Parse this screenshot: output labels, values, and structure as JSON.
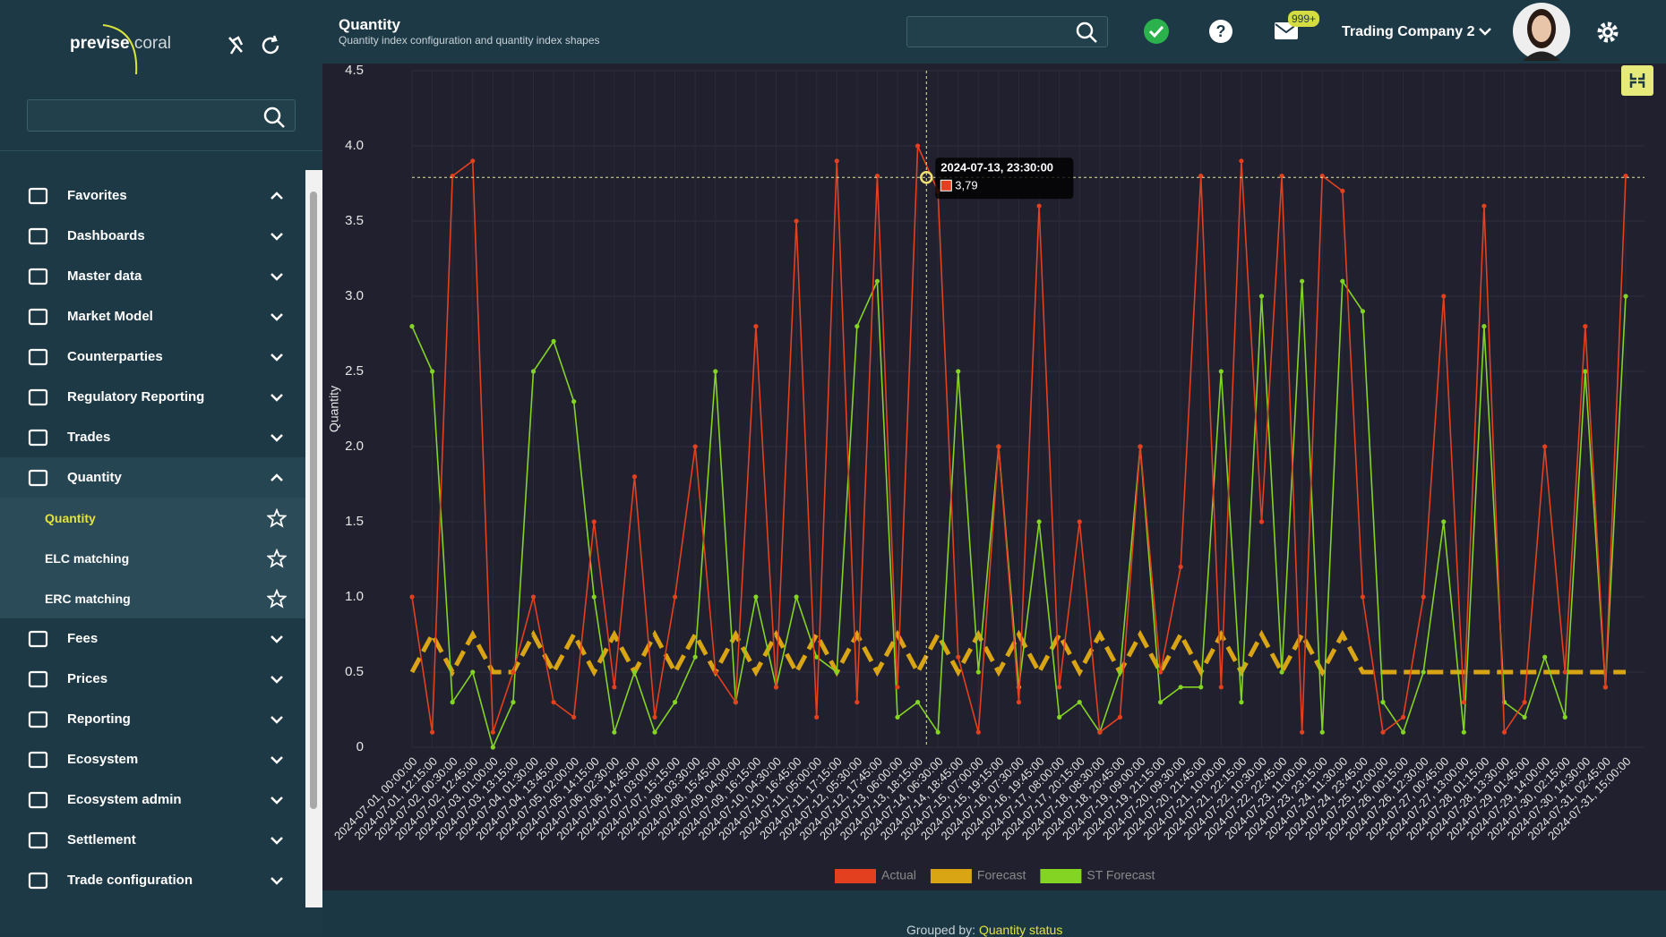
{
  "header": {
    "title": "Quantity",
    "subtitle": "Quantity index configuration and quantity index shapes",
    "notification_badge": "999+",
    "company": "Trading Company 2"
  },
  "logo": {
    "brand": "previse",
    "product": "coral"
  },
  "sidebar": {
    "menu": [
      {
        "label": "Favorites"
      },
      {
        "label": "Dashboards"
      },
      {
        "label": "Master data"
      },
      {
        "label": "Market Model"
      },
      {
        "label": "Counterparties"
      },
      {
        "label": "Regulatory Reporting"
      },
      {
        "label": "Trades"
      },
      {
        "label": "Quantity",
        "children": [
          {
            "label": "Quantity"
          },
          {
            "label": "ELC matching"
          },
          {
            "label": "ERC matching"
          }
        ]
      },
      {
        "label": "Fees"
      },
      {
        "label": "Prices"
      },
      {
        "label": "Reporting"
      },
      {
        "label": "Ecosystem"
      },
      {
        "label": "Ecosystem admin"
      },
      {
        "label": "Settlement"
      },
      {
        "label": "Trade configuration"
      }
    ]
  },
  "footer": {
    "label": "Grouped by:",
    "value": "Quantity status"
  },
  "chart_data": {
    "type": "line",
    "y_label": "Quantity",
    "categories": [
      "2024-07-01, 00:00:00",
      "2024-07-01, 12:15:00",
      "2024-07-02, 00:30:00",
      "2024-07-02, 12:45:00",
      "2024-07-03, 01:00:00",
      "2024-07-03, 13:15:00",
      "2024-07-04, 01:30:00",
      "2024-07-04, 13:45:00",
      "2024-07-05, 02:00:00",
      "2024-07-05, 14:15:00",
      "2024-07-06, 02:30:00",
      "2024-07-06, 14:45:00",
      "2024-07-07, 03:00:00",
      "2024-07-07, 15:15:00",
      "2024-07-08, 03:30:00",
      "2024-07-08, 15:45:00",
      "2024-07-09, 04:00:00",
      "2024-07-09, 16:15:00",
      "2024-07-10, 04:30:00",
      "2024-07-10, 16:45:00",
      "2024-07-11, 05:00:00",
      "2024-07-11, 17:15:00",
      "2024-07-12, 05:30:00",
      "2024-07-12, 17:45:00",
      "2024-07-13, 06:00:00",
      "2024-07-13, 18:15:00",
      "2024-07-14, 06:30:00",
      "2024-07-14, 18:45:00",
      "2024-07-15, 07:00:00",
      "2024-07-15, 19:15:00",
      "2024-07-16, 07:30:00",
      "2024-07-16, 19:45:00",
      "2024-07-17, 08:00:00",
      "2024-07-17, 20:15:00",
      "2024-07-18, 08:30:00",
      "2024-07-18, 20:45:00",
      "2024-07-19, 09:00:00",
      "2024-07-19, 21:15:00",
      "2024-07-20, 09:30:00",
      "2024-07-20, 21:45:00",
      "2024-07-21, 10:00:00",
      "2024-07-21, 22:15:00",
      "2024-07-22, 10:30:00",
      "2024-07-22, 22:45:00",
      "2024-07-23, 11:00:00",
      "2024-07-23, 23:15:00",
      "2024-07-24, 11:30:00",
      "2024-07-24, 23:45:00",
      "2024-07-25, 12:00:00",
      "2024-07-26, 00:15:00",
      "2024-07-26, 12:30:00",
      "2024-07-27, 00:45:00",
      "2024-07-27, 13:00:00",
      "2024-07-28, 01:15:00",
      "2024-07-28, 13:30:00",
      "2024-07-29, 01:45:00",
      "2024-07-29, 14:00:00",
      "2024-07-30, 02:15:00",
      "2024-07-30, 14:30:00",
      "2024-07-31, 02:45:00",
      "2024-07-31, 15:00:00"
    ],
    "series": [
      {
        "name": "Actual",
        "color": "#e2401e",
        "values": [
          1.0,
          0.1,
          3.8,
          3.9,
          0.1,
          0.5,
          1.0,
          0.3,
          0.2,
          1.5,
          0.4,
          1.8,
          0.2,
          1.0,
          2.0,
          0.5,
          0.3,
          2.8,
          0.4,
          3.5,
          0.2,
          3.9,
          0.3,
          3.8,
          0.4,
          4.0,
          3.7,
          0.6,
          0.1,
          2.0,
          0.3,
          3.6,
          0.4,
          1.5,
          0.1,
          0.2,
          2.0,
          0.5,
          1.2,
          3.8,
          0.4,
          3.9,
          1.5,
          3.8,
          0.1,
          3.8,
          3.7,
          1.0,
          0.1,
          0.2,
          1.0,
          3.0,
          0.3,
          3.6,
          0.1,
          0.3,
          2.0,
          0.5,
          2.8,
          0.4,
          3.8
        ]
      },
      {
        "name": "Forecast",
        "color": "#d9a514",
        "values": [
          0.5,
          0.75,
          0.5,
          0.75,
          0.5,
          0.5,
          0.75,
          0.5,
          0.75,
          0.5,
          0.75,
          0.5,
          0.75,
          0.5,
          0.75,
          0.5,
          0.75,
          0.5,
          0.75,
          0.5,
          0.75,
          0.5,
          0.75,
          0.5,
          0.75,
          0.5,
          0.75,
          0.5,
          0.75,
          0.5,
          0.75,
          0.5,
          0.75,
          0.5,
          0.75,
          0.5,
          0.75,
          0.5,
          0.75,
          0.5,
          0.75,
          0.5,
          0.75,
          0.5,
          0.75,
          0.5,
          0.75,
          0.5,
          0.5,
          0.5,
          0.5,
          0.5,
          0.5,
          0.5,
          0.5,
          0.5,
          0.5,
          0.5,
          0.5,
          0.5,
          0.5
        ]
      },
      {
        "name": "ST Forecast",
        "color": "#84d424",
        "values": [
          2.8,
          2.5,
          0.3,
          0.5,
          0,
          0.3,
          2.5,
          2.7,
          2.3,
          1.0,
          0.1,
          0.5,
          0.1,
          0.3,
          0.6,
          2.5,
          0.3,
          1.0,
          0.4,
          1.0,
          0.6,
          0.5,
          2.8,
          3.1,
          0.2,
          0.3,
          0.1,
          2.5,
          0.5,
          2.0,
          0.4,
          1.5,
          0.2,
          0.3,
          0.1,
          0.5,
          2.0,
          0.3,
          0.4,
          0.4,
          2.5,
          0.3,
          3.0,
          0.5,
          3.1,
          0.1,
          3.1,
          2.9,
          0.3,
          0.1,
          0.5,
          1.5,
          0.1,
          2.8,
          0.3,
          0.2,
          0.6,
          0.2,
          2.5,
          0.4,
          3.0
        ]
      }
    ],
    "ylim": [
      0,
      4.5
    ],
    "yticks": [
      0,
      0.5,
      {
        "value": 1,
        "label": "1.0"
      },
      1.5,
      {
        "value": 2,
        "label": "2.0"
      },
      2.5,
      {
        "value": 3,
        "label": "3.0"
      },
      3.5,
      {
        "value": 4,
        "label": "4.0"
      },
      4.5
    ],
    "grid": true,
    "legend": "bottom",
    "tooltip": {
      "title": "2024-07-13, 23:30:00",
      "value": 3.79,
      "value_label": "3,79"
    }
  }
}
